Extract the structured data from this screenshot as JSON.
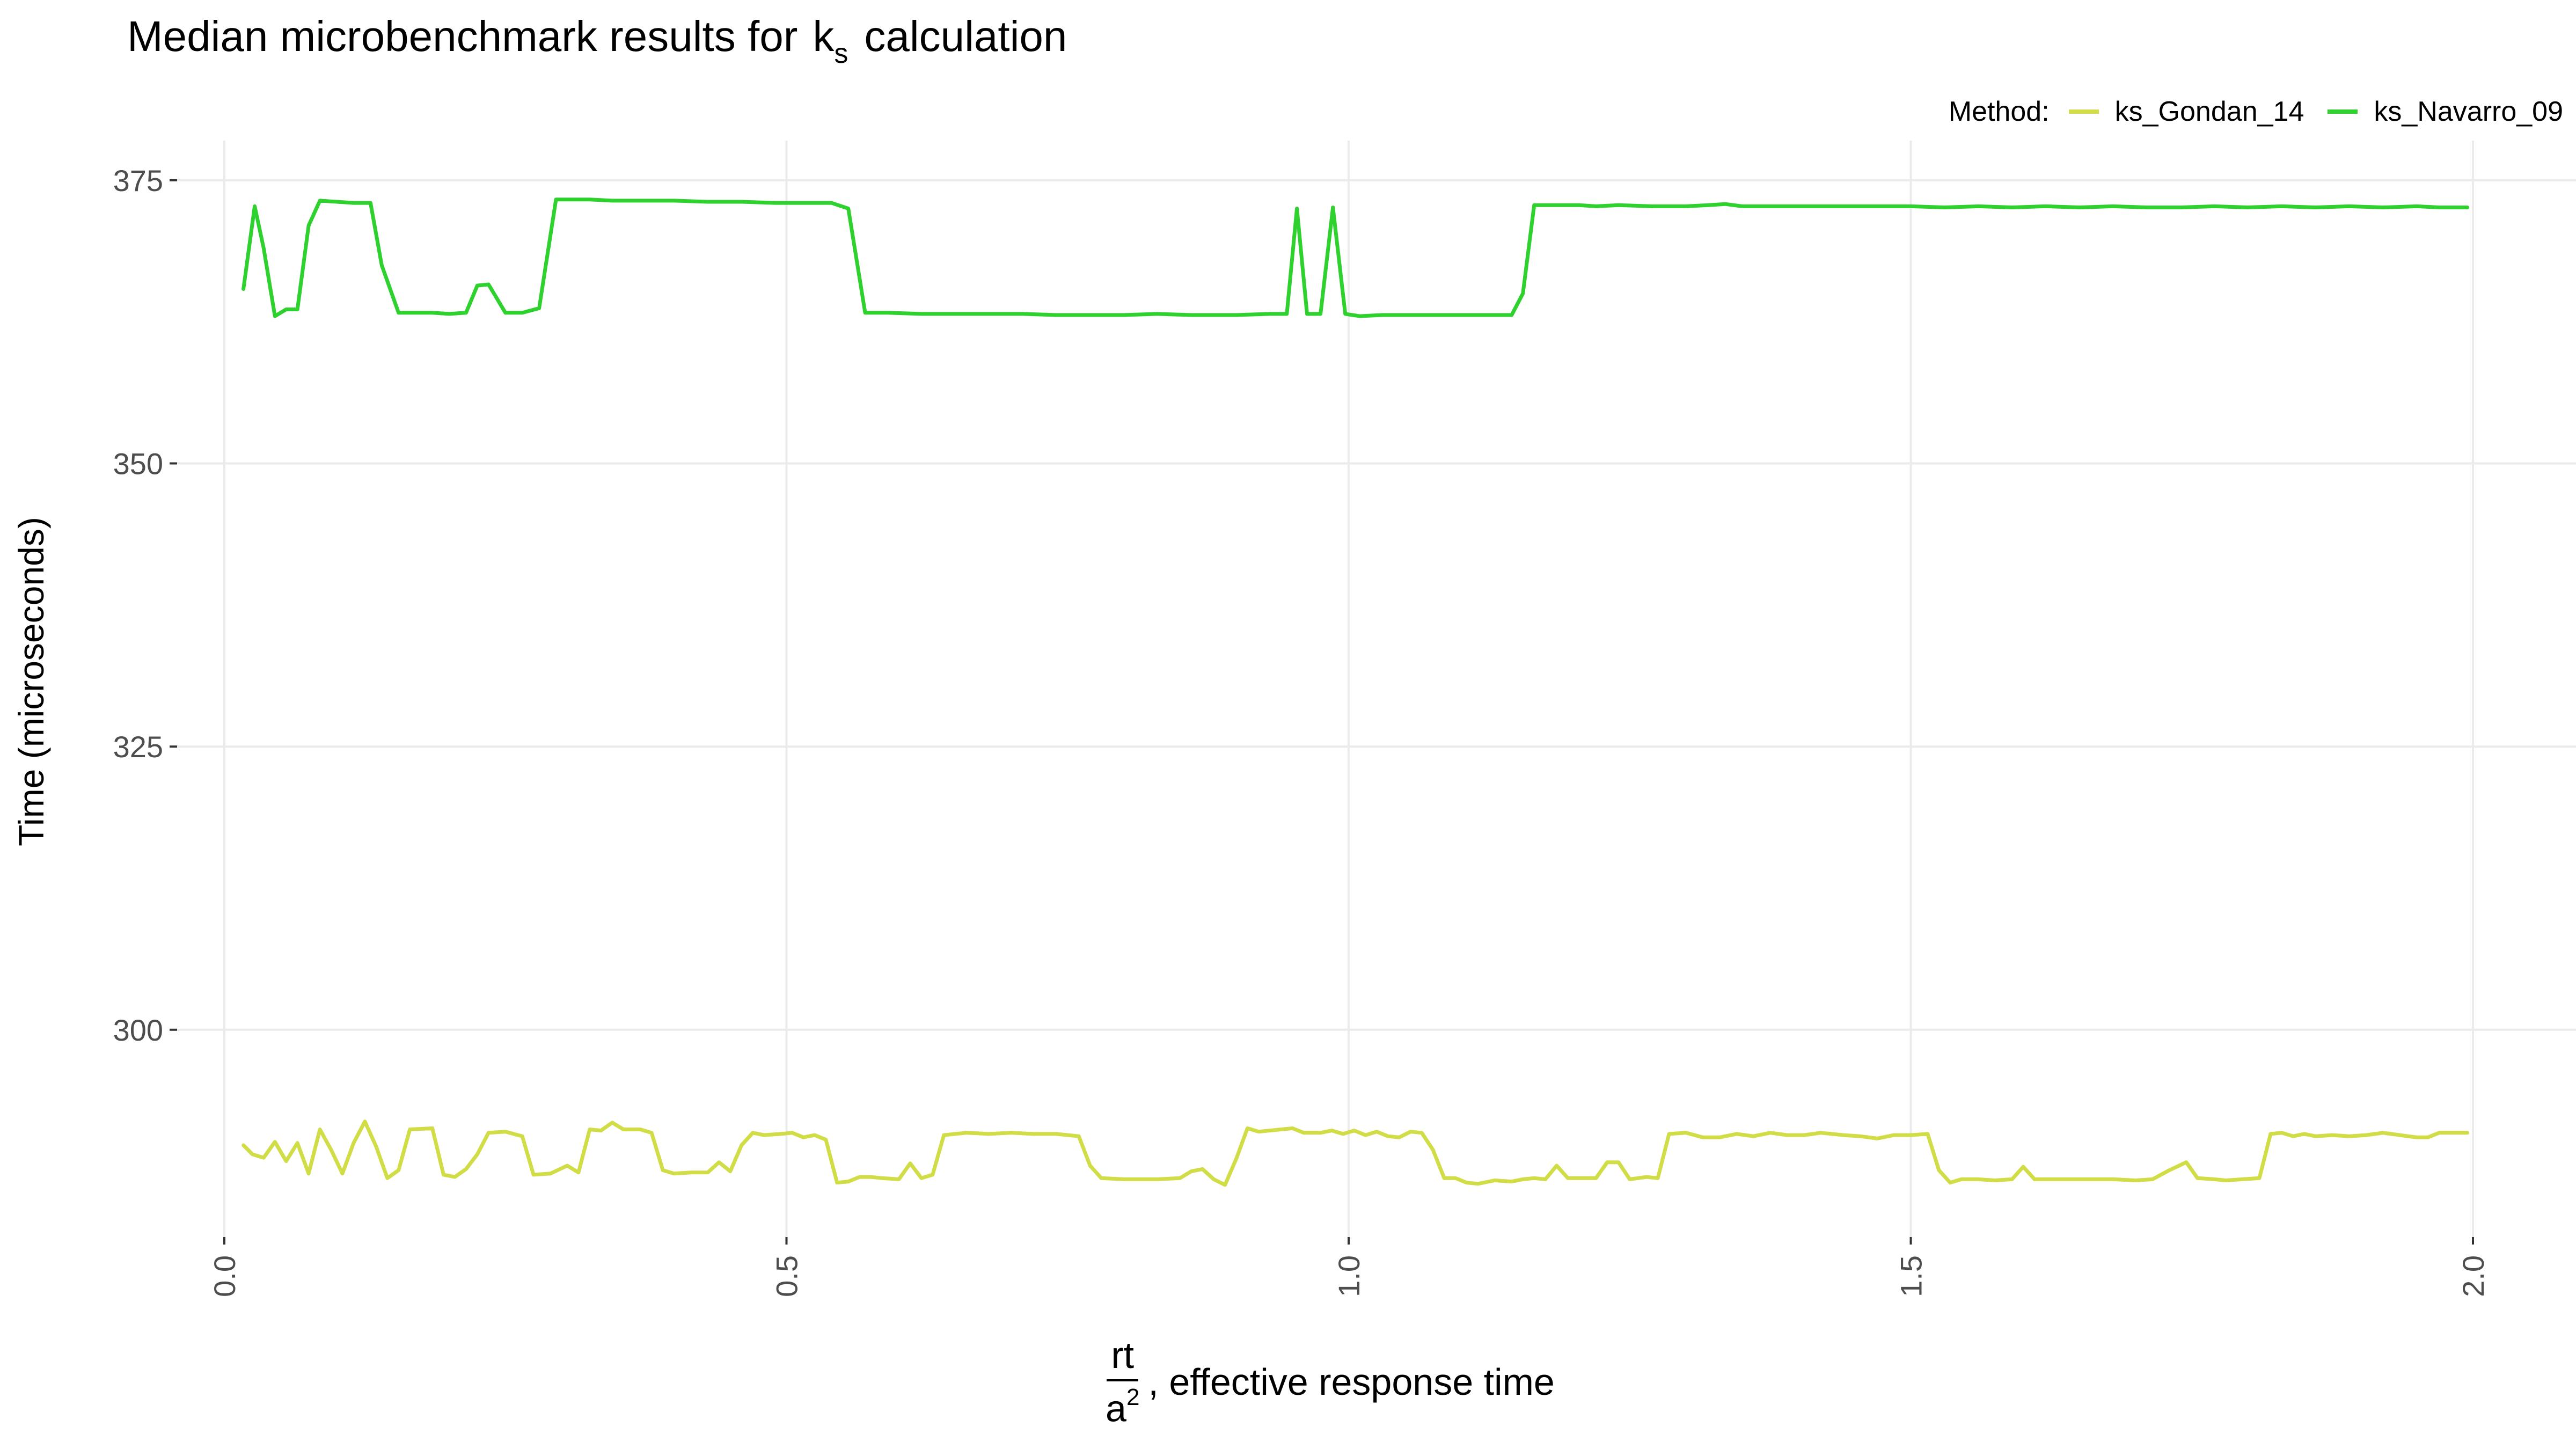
{
  "chart_data": {
    "type": "line",
    "title_prefix": "Median microbenchmark results for",
    "title_symbol": "k",
    "title_symbol_sub": "s",
    "title_suffix": "calculation",
    "xlabel_numerator": "rt",
    "xlabel_denominator": "a",
    "xlabel_denominator_exp": "2",
    "xlabel_suffix": ", effective response time",
    "ylabel": "Time (microseconds)",
    "legend_title": "Method:",
    "legend_position": "top-right",
    "grid": true,
    "xlim": [
      0,
      2.0
    ],
    "ylim": [
      281.7,
      378.5
    ],
    "x_ticks": [
      0.0,
      0.5,
      1.0,
      1.5,
      2.0
    ],
    "x_tick_labels": [
      "0.0",
      "0.5",
      "1.0",
      "1.5",
      "2.0"
    ],
    "y_ticks": [
      300,
      325,
      350,
      375
    ],
    "y_tick_labels": [
      "300",
      "325",
      "350",
      "375"
    ],
    "colors": {
      "ks_Gondan_14": "#d1dd46",
      "ks_Navarro_09": "#2ed12e"
    },
    "series": [
      {
        "name": "ks_Gondan_14",
        "color": "#d1dd46",
        "points": [
          [
            0.017,
            289.8
          ],
          [
            0.025,
            289.0
          ],
          [
            0.035,
            288.7
          ],
          [
            0.045,
            290.1
          ],
          [
            0.055,
            288.4
          ],
          [
            0.065,
            290.0
          ],
          [
            0.075,
            287.3
          ],
          [
            0.085,
            291.2
          ],
          [
            0.095,
            289.4
          ],
          [
            0.105,
            287.3
          ],
          [
            0.115,
            290.0
          ],
          [
            0.125,
            291.9
          ],
          [
            0.135,
            289.7
          ],
          [
            0.145,
            286.9
          ],
          [
            0.155,
            287.6
          ],
          [
            0.165,
            291.2
          ],
          [
            0.185,
            291.3
          ],
          [
            0.195,
            287.2
          ],
          [
            0.205,
            287.0
          ],
          [
            0.215,
            287.7
          ],
          [
            0.225,
            289.0
          ],
          [
            0.235,
            290.9
          ],
          [
            0.25,
            291.0
          ],
          [
            0.265,
            290.6
          ],
          [
            0.275,
            287.2
          ],
          [
            0.29,
            287.3
          ],
          [
            0.305,
            288.0
          ],
          [
            0.315,
            287.4
          ],
          [
            0.325,
            291.2
          ],
          [
            0.335,
            291.1
          ],
          [
            0.345,
            291.8
          ],
          [
            0.355,
            291.2
          ],
          [
            0.37,
            291.2
          ],
          [
            0.38,
            290.9
          ],
          [
            0.39,
            287.6
          ],
          [
            0.4,
            287.3
          ],
          [
            0.415,
            287.4
          ],
          [
            0.43,
            287.4
          ],
          [
            0.44,
            288.3
          ],
          [
            0.45,
            287.5
          ],
          [
            0.46,
            289.8
          ],
          [
            0.47,
            290.9
          ],
          [
            0.48,
            290.7
          ],
          [
            0.495,
            290.8
          ],
          [
            0.505,
            290.9
          ],
          [
            0.515,
            290.5
          ],
          [
            0.525,
            290.7
          ],
          [
            0.535,
            290.3
          ],
          [
            0.545,
            286.5
          ],
          [
            0.555,
            286.6
          ],
          [
            0.565,
            287.0
          ],
          [
            0.575,
            287.0
          ],
          [
            0.585,
            286.9
          ],
          [
            0.6,
            286.8
          ],
          [
            0.61,
            288.2
          ],
          [
            0.62,
            286.9
          ],
          [
            0.63,
            287.2
          ],
          [
            0.64,
            290.7
          ],
          [
            0.66,
            290.9
          ],
          [
            0.68,
            290.8
          ],
          [
            0.7,
            290.9
          ],
          [
            0.72,
            290.8
          ],
          [
            0.74,
            290.8
          ],
          [
            0.76,
            290.6
          ],
          [
            0.77,
            288.0
          ],
          [
            0.78,
            286.9
          ],
          [
            0.8,
            286.8
          ],
          [
            0.83,
            286.8
          ],
          [
            0.85,
            286.9
          ],
          [
            0.86,
            287.5
          ],
          [
            0.87,
            287.7
          ],
          [
            0.88,
            286.8
          ],
          [
            0.89,
            286.3
          ],
          [
            0.9,
            288.6
          ],
          [
            0.91,
            291.3
          ],
          [
            0.92,
            291.0
          ],
          [
            0.94,
            291.2
          ],
          [
            0.95,
            291.3
          ],
          [
            0.96,
            290.9
          ],
          [
            0.975,
            290.9
          ],
          [
            0.985,
            291.1
          ],
          [
            0.995,
            290.8
          ],
          [
            1.005,
            291.1
          ],
          [
            1.015,
            290.7
          ],
          [
            1.025,
            291.0
          ],
          [
            1.035,
            290.6
          ],
          [
            1.045,
            290.5
          ],
          [
            1.055,
            291.0
          ],
          [
            1.065,
            290.9
          ],
          [
            1.075,
            289.4
          ],
          [
            1.085,
            286.9
          ],
          [
            1.095,
            286.9
          ],
          [
            1.105,
            286.5
          ],
          [
            1.115,
            286.4
          ],
          [
            1.13,
            286.7
          ],
          [
            1.145,
            286.6
          ],
          [
            1.155,
            286.8
          ],
          [
            1.165,
            286.9
          ],
          [
            1.175,
            286.8
          ],
          [
            1.185,
            288.0
          ],
          [
            1.195,
            286.9
          ],
          [
            1.21,
            286.9
          ],
          [
            1.22,
            286.9
          ],
          [
            1.23,
            288.3
          ],
          [
            1.24,
            288.3
          ],
          [
            1.25,
            286.8
          ],
          [
            1.265,
            287.0
          ],
          [
            1.275,
            286.9
          ],
          [
            1.285,
            290.8
          ],
          [
            1.3,
            290.9
          ],
          [
            1.315,
            290.5
          ],
          [
            1.33,
            290.5
          ],
          [
            1.345,
            290.8
          ],
          [
            1.36,
            290.6
          ],
          [
            1.375,
            290.9
          ],
          [
            1.39,
            290.7
          ],
          [
            1.405,
            290.7
          ],
          [
            1.42,
            290.9
          ],
          [
            1.44,
            290.7
          ],
          [
            1.455,
            290.6
          ],
          [
            1.47,
            290.4
          ],
          [
            1.485,
            290.7
          ],
          [
            1.5,
            290.7
          ],
          [
            1.515,
            290.8
          ],
          [
            1.525,
            287.6
          ],
          [
            1.535,
            286.5
          ],
          [
            1.545,
            286.8
          ],
          [
            1.56,
            286.8
          ],
          [
            1.575,
            286.7
          ],
          [
            1.59,
            286.8
          ],
          [
            1.6,
            287.9
          ],
          [
            1.61,
            286.8
          ],
          [
            1.625,
            286.8
          ],
          [
            1.64,
            286.8
          ],
          [
            1.66,
            286.8
          ],
          [
            1.68,
            286.8
          ],
          [
            1.7,
            286.7
          ],
          [
            1.715,
            286.8
          ],
          [
            1.73,
            287.6
          ],
          [
            1.745,
            288.3
          ],
          [
            1.755,
            286.9
          ],
          [
            1.77,
            286.8
          ],
          [
            1.78,
            286.7
          ],
          [
            1.795,
            286.8
          ],
          [
            1.81,
            286.9
          ],
          [
            1.82,
            290.8
          ],
          [
            1.83,
            290.9
          ],
          [
            1.84,
            290.6
          ],
          [
            1.85,
            290.8
          ],
          [
            1.86,
            290.6
          ],
          [
            1.875,
            290.7
          ],
          [
            1.89,
            290.6
          ],
          [
            1.905,
            290.7
          ],
          [
            1.92,
            290.9
          ],
          [
            1.935,
            290.7
          ],
          [
            1.95,
            290.5
          ],
          [
            1.96,
            290.5
          ],
          [
            1.97,
            290.9
          ],
          [
            1.985,
            290.9
          ],
          [
            1.995,
            290.9
          ]
        ]
      },
      {
        "name": "ks_Navarro_09",
        "color": "#2ed12e",
        "points": [
          [
            0.017,
            365.4
          ],
          [
            0.027,
            372.7
          ],
          [
            0.035,
            369.0
          ],
          [
            0.045,
            363.0
          ],
          [
            0.055,
            363.6
          ],
          [
            0.065,
            363.6
          ],
          [
            0.075,
            371.0
          ],
          [
            0.085,
            373.2
          ],
          [
            0.1,
            373.1
          ],
          [
            0.115,
            373.0
          ],
          [
            0.13,
            373.0
          ],
          [
            0.14,
            367.5
          ],
          [
            0.155,
            363.3
          ],
          [
            0.17,
            363.3
          ],
          [
            0.185,
            363.3
          ],
          [
            0.2,
            363.2
          ],
          [
            0.215,
            363.3
          ],
          [
            0.225,
            365.7
          ],
          [
            0.235,
            365.8
          ],
          [
            0.25,
            363.3
          ],
          [
            0.265,
            363.3
          ],
          [
            0.28,
            363.7
          ],
          [
            0.295,
            373.3
          ],
          [
            0.31,
            373.3
          ],
          [
            0.325,
            373.3
          ],
          [
            0.345,
            373.2
          ],
          [
            0.37,
            373.2
          ],
          [
            0.4,
            373.2
          ],
          [
            0.43,
            373.1
          ],
          [
            0.46,
            373.1
          ],
          [
            0.49,
            373.0
          ],
          [
            0.52,
            373.0
          ],
          [
            0.54,
            373.0
          ],
          [
            0.555,
            372.5
          ],
          [
            0.57,
            363.3
          ],
          [
            0.59,
            363.3
          ],
          [
            0.62,
            363.2
          ],
          [
            0.65,
            363.2
          ],
          [
            0.68,
            363.2
          ],
          [
            0.71,
            363.2
          ],
          [
            0.74,
            363.1
          ],
          [
            0.77,
            363.1
          ],
          [
            0.8,
            363.1
          ],
          [
            0.83,
            363.2
          ],
          [
            0.86,
            363.1
          ],
          [
            0.88,
            363.1
          ],
          [
            0.9,
            363.1
          ],
          [
            0.93,
            363.2
          ],
          [
            0.945,
            363.2
          ],
          [
            0.954,
            372.5
          ],
          [
            0.963,
            363.2
          ],
          [
            0.975,
            363.2
          ],
          [
            0.986,
            372.6
          ],
          [
            0.997,
            363.2
          ],
          [
            1.01,
            363.0
          ],
          [
            1.03,
            363.1
          ],
          [
            1.06,
            363.1
          ],
          [
            1.09,
            363.1
          ],
          [
            1.12,
            363.1
          ],
          [
            1.145,
            363.1
          ],
          [
            1.155,
            365.0
          ],
          [
            1.165,
            372.8
          ],
          [
            1.185,
            372.8
          ],
          [
            1.205,
            372.8
          ],
          [
            1.22,
            372.7
          ],
          [
            1.24,
            372.8
          ],
          [
            1.27,
            372.7
          ],
          [
            1.3,
            372.7
          ],
          [
            1.32,
            372.8
          ],
          [
            1.335,
            372.9
          ],
          [
            1.35,
            372.7
          ],
          [
            1.38,
            372.7
          ],
          [
            1.41,
            372.7
          ],
          [
            1.44,
            372.7
          ],
          [
            1.47,
            372.7
          ],
          [
            1.5,
            372.7
          ],
          [
            1.53,
            372.6
          ],
          [
            1.56,
            372.7
          ],
          [
            1.59,
            372.6
          ],
          [
            1.62,
            372.7
          ],
          [
            1.65,
            372.6
          ],
          [
            1.68,
            372.7
          ],
          [
            1.71,
            372.6
          ],
          [
            1.74,
            372.6
          ],
          [
            1.77,
            372.7
          ],
          [
            1.8,
            372.6
          ],
          [
            1.83,
            372.7
          ],
          [
            1.86,
            372.6
          ],
          [
            1.89,
            372.7
          ],
          [
            1.92,
            372.6
          ],
          [
            1.95,
            372.7
          ],
          [
            1.97,
            372.6
          ],
          [
            1.995,
            372.6
          ]
        ]
      }
    ]
  }
}
